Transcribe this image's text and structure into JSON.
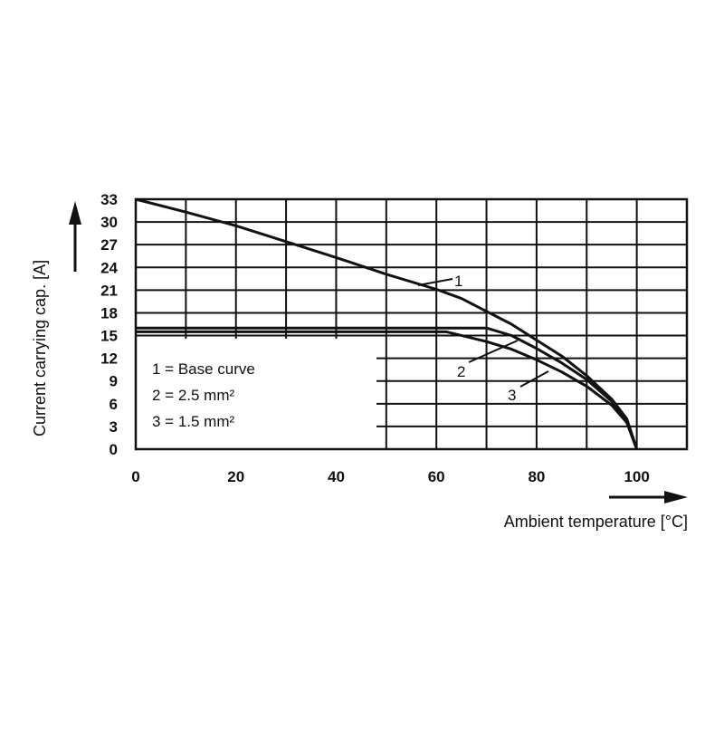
{
  "chart_data": {
    "type": "line",
    "title": "",
    "xlabel": "Ambient temperature [°C]",
    "ylabel": "Current carrying cap. [A]",
    "xlim": [
      0,
      110
    ],
    "ylim": [
      0,
      33
    ],
    "x_ticks": [
      "0",
      "20",
      "40",
      "60",
      "80",
      "100"
    ],
    "y_ticks": [
      "0",
      "3",
      "6",
      "9",
      "12",
      "15",
      "18",
      "21",
      "24",
      "27",
      "30",
      "33"
    ],
    "grid": true,
    "legend": {
      "placement": "lower-left",
      "entries": [
        {
          "key": "1",
          "text": "1 = Base curve"
        },
        {
          "key": "2",
          "text": "2 = 2.5 mm²"
        },
        {
          "key": "3",
          "text": "3 = 1.5 mm²"
        }
      ]
    },
    "series": [
      {
        "name": "1",
        "x": [
          0,
          10,
          20,
          30,
          40,
          50,
          60,
          65,
          70,
          75,
          80,
          85,
          90,
          95,
          98,
          100
        ],
        "y": [
          33,
          31.3,
          29.5,
          27.4,
          25.3,
          23.1,
          21.1,
          19.9,
          18.2,
          16.5,
          14.4,
          12.3,
          9.7,
          6.6,
          4.0,
          0
        ]
      },
      {
        "name": "2",
        "x": [
          0,
          10,
          20,
          30,
          40,
          50,
          60,
          70,
          75,
          80,
          85,
          90,
          95,
          98,
          100
        ],
        "y": [
          16,
          16,
          16,
          16,
          16,
          16,
          16,
          16,
          15.0,
          13.3,
          11.4,
          9.2,
          6.3,
          3.8,
          0
        ]
      },
      {
        "name": "3",
        "x": [
          0,
          10,
          20,
          30,
          40,
          50,
          60,
          62,
          70,
          75,
          80,
          85,
          90,
          95,
          98,
          100
        ],
        "y": [
          15.5,
          15.5,
          15.5,
          15.5,
          15.5,
          15.5,
          15.5,
          15.5,
          14.2,
          13.2,
          11.8,
          10.2,
          8.3,
          5.8,
          3.5,
          0
        ]
      }
    ],
    "curve_labels": [
      {
        "series": "1",
        "text": "1"
      },
      {
        "series": "2",
        "text": "2"
      },
      {
        "series": "3",
        "text": "3"
      }
    ]
  }
}
